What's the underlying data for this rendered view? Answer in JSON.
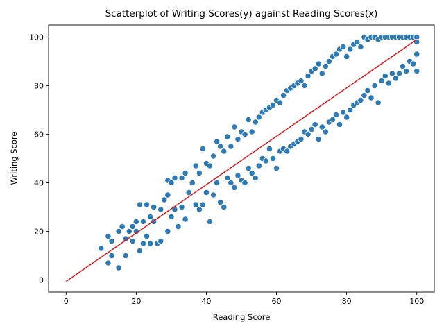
{
  "chart_data": {
    "type": "scatter",
    "title": "Scatterplot of Writing Scores(y) against Reading Scores(x)",
    "xlabel": "Reading Score",
    "ylabel": "Writing Score",
    "xlim": [
      -5,
      105
    ],
    "ylim": [
      -5,
      105
    ],
    "xticks": [
      "0",
      "20",
      "40",
      "60",
      "80",
      "100"
    ],
    "yticks": [
      "0",
      "20",
      "40",
      "60",
      "80",
      "100"
    ],
    "grid": false,
    "point_color": "#2e7ab4",
    "point_edge_color": "#ffffff",
    "line_color": "#e31a1c",
    "regression_line": {
      "x": [
        0,
        100
      ],
      "y": [
        -0.6,
        99
      ]
    },
    "points": {
      "x": [
        10,
        12,
        12,
        13,
        13,
        15,
        15,
        16,
        17,
        17,
        18,
        19,
        19,
        20,
        20,
        21,
        21,
        22,
        22,
        23,
        23,
        24,
        24,
        25,
        25,
        26,
        27,
        27,
        28,
        29,
        29,
        29,
        30,
        30,
        31,
        31,
        32,
        33,
        33,
        34,
        34,
        35,
        36,
        37,
        37,
        38,
        38,
        39,
        39,
        40,
        40,
        41,
        41,
        42,
        42,
        43,
        43,
        44,
        44,
        45,
        45,
        46,
        46,
        47,
        47,
        48,
        48,
        49,
        49,
        50,
        50,
        51,
        51,
        52,
        52,
        53,
        53,
        54,
        54,
        55,
        55,
        56,
        56,
        57,
        57,
        58,
        58,
        59,
        59,
        60,
        60,
        61,
        61,
        62,
        62,
        63,
        63,
        64,
        64,
        65,
        65,
        66,
        66,
        67,
        67,
        68,
        68,
        69,
        69,
        70,
        70,
        71,
        71,
        72,
        72,
        73,
        73,
        74,
        74,
        75,
        75,
        76,
        76,
        77,
        77,
        78,
        78,
        79,
        79,
        80,
        80,
        81,
        81,
        82,
        82,
        83,
        83,
        84,
        84,
        85,
        85,
        86,
        86,
        87,
        87,
        88,
        88,
        89,
        89,
        90,
        90,
        91,
        91,
        92,
        92,
        93,
        93,
        94,
        94,
        95,
        95,
        96,
        96,
        97,
        97,
        98,
        98,
        99,
        99,
        100,
        100,
        100,
        100
      ],
      "y": [
        13,
        7,
        18,
        10,
        16,
        5,
        20,
        22,
        10,
        17,
        20,
        16,
        22,
        20,
        24,
        12,
        31,
        15,
        24,
        18,
        31,
        15,
        26,
        24,
        30,
        15,
        16,
        29,
        33,
        20,
        35,
        41,
        26,
        40,
        29,
        42,
        22,
        30,
        42,
        25,
        44,
        36,
        40,
        31,
        47,
        29,
        44,
        31,
        54,
        36,
        48,
        24,
        47,
        35,
        51,
        40,
        57,
        32,
        55,
        30,
        53,
        42,
        59,
        40,
        55,
        38,
        63,
        43,
        58,
        41,
        61,
        40,
        60,
        46,
        66,
        44,
        61,
        42,
        65,
        47,
        67,
        50,
        69,
        49,
        70,
        54,
        71,
        50,
        72,
        46,
        74,
        53,
        73,
        54,
        76,
        53,
        78,
        55,
        79,
        56,
        80,
        57,
        81,
        58,
        82,
        61,
        80,
        60,
        84,
        62,
        86,
        64,
        87,
        58,
        89,
        63,
        85,
        61,
        88,
        65,
        90,
        66,
        92,
        68,
        93,
        64,
        95,
        69,
        96,
        67,
        92,
        70,
        95,
        72,
        97,
        73,
        98,
        74,
        96,
        76,
        100,
        78,
        99,
        75,
        100,
        80,
        100,
        73,
        99,
        82,
        100,
        84,
        100,
        81,
        100,
        85,
        100,
        83,
        100,
        85,
        100,
        88,
        100,
        86,
        100,
        90,
        100,
        89,
        100,
        86,
        100,
        93,
        98
      ]
    }
  }
}
